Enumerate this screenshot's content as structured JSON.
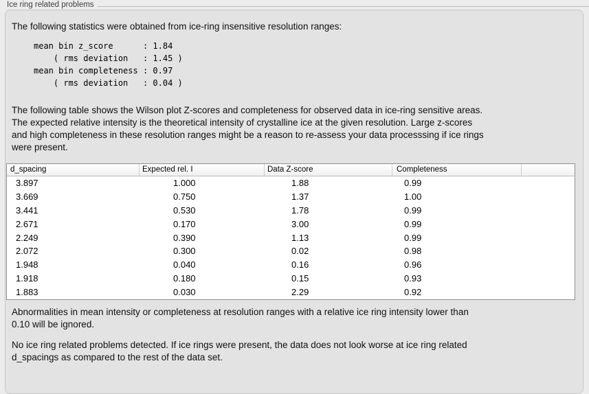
{
  "group": {
    "title": "Ice ring related problems"
  },
  "intro_text": "The following statistics were obtained from ice-ring insensitive resolution ranges:",
  "stats_block": "mean bin z_score      : 1.84\n    ( rms deviation   : 1.45 )\nmean bin completeness : 0.97\n    ( rms deviation   : 0.04 )",
  "table_description": "The following table shows the Wilson plot Z-scores and completeness for observed data in ice-ring sensitive areas.\nThe expected relative intensity is the theoretical intensity of crystalline ice at the given resolution. Large z-scores\nand high completeness in these resolution ranges might be a reason to re-assess your data processsing if ice rings\nwere present.",
  "table": {
    "columns": [
      "d_spacing",
      "Expected rel. I",
      "Data Z-score",
      "Completeness",
      ""
    ],
    "rows": [
      [
        "3.897",
        "1.000",
        "1.88",
        "0.99"
      ],
      [
        "3.669",
        "0.750",
        "1.37",
        "1.00"
      ],
      [
        "3.441",
        "0.530",
        "1.78",
        "0.99"
      ],
      [
        "2.671",
        "0.170",
        "3.00",
        "0.99"
      ],
      [
        "2.249",
        "0.390",
        "1.13",
        "0.99"
      ],
      [
        "2.072",
        "0.300",
        "0.02",
        "0.98"
      ],
      [
        "1.948",
        "0.040",
        "0.16",
        "0.96"
      ],
      [
        "1.918",
        "0.180",
        "0.15",
        "0.93"
      ],
      [
        "1.883",
        "0.030",
        "2.29",
        "0.92"
      ]
    ]
  },
  "ignore_note": "Abnormalities in mean intensity or completeness at resolution ranges with a relative ice ring intensity lower than\n0.10 will be ignored.",
  "conclusion": "No ice ring related problems detected. If ice rings were present, the data does not look worse at ice ring related\nd_spacings as compared to the rest of the data set."
}
